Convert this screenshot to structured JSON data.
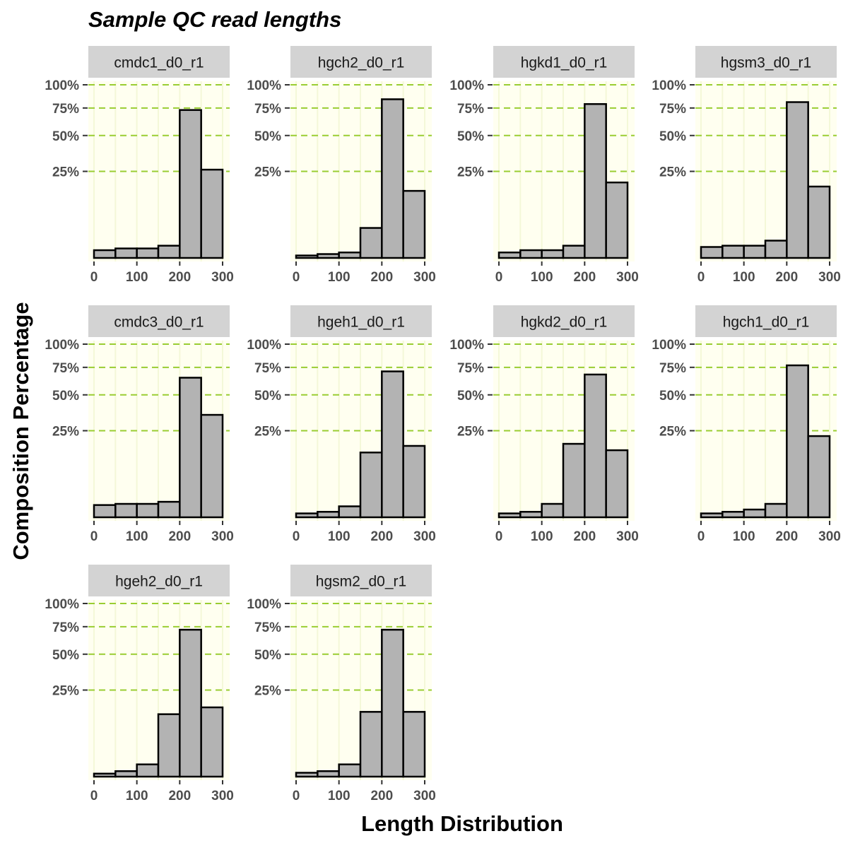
{
  "title": "Sample QC read lengths",
  "xlabel": "Length Distribution",
  "ylabel": "Composition Percentage",
  "colors": {
    "panel_background": "#fffff0",
    "panel_grid": "#f4f8d8",
    "reference_line": "#9acd32",
    "bar_fill": "#b3b3b3",
    "bar_outline": "#000000",
    "strip_background": "#d3d3d3",
    "axis_text": "#4d4d4d"
  },
  "chart_data": {
    "type": "bar",
    "title": "Sample QC read lengths",
    "xlabel": "Length Distribution",
    "ylabel": "Composition Percentage",
    "bin_width": 50,
    "x_ticks": [
      0,
      100,
      200,
      300
    ],
    "y_ticks": [
      {
        "label": "100%",
        "value": 1.0
      },
      {
        "label": "75%",
        "value": 0.75
      },
      {
        "label": "50%",
        "value": 0.5
      },
      {
        "label": "25%",
        "value": 0.25
      }
    ],
    "y_scale": "sqrt",
    "xlim": [
      0,
      300
    ],
    "ylim": [
      0,
      1
    ],
    "grid": true,
    "bin_starts": [
      0,
      50,
      100,
      150,
      200,
      250
    ],
    "panels": [
      {
        "name": "cmdc1_d0_r1",
        "values": [
          0.002,
          0.003,
          0.003,
          0.005,
          0.73,
          0.26
        ]
      },
      {
        "name": "hgch2_d0_r1",
        "values": [
          0.0002,
          0.0005,
          0.001,
          0.03,
          0.84,
          0.15
        ]
      },
      {
        "name": "hgkd1_d0_r1",
        "values": [
          0.001,
          0.002,
          0.002,
          0.005,
          0.79,
          0.19
        ]
      },
      {
        "name": "hgsm3_d0_r1",
        "values": [
          0.004,
          0.005,
          0.005,
          0.01,
          0.81,
          0.17
        ]
      },
      {
        "name": "cmdc3_d0_r1",
        "values": [
          0.005,
          0.006,
          0.006,
          0.008,
          0.65,
          0.35
        ]
      },
      {
        "name": "hgeh1_d0_r1",
        "values": [
          0.0005,
          0.001,
          0.004,
          0.14,
          0.71,
          0.17
        ]
      },
      {
        "name": "hgkd2_d0_r1",
        "values": [
          0.0005,
          0.001,
          0.006,
          0.18,
          0.68,
          0.15
        ]
      },
      {
        "name": "hgch1_d0_r1",
        "values": [
          0.0005,
          0.001,
          0.002,
          0.006,
          0.77,
          0.22
        ]
      },
      {
        "name": "hgeh2_d0_r1",
        "values": [
          0.0003,
          0.001,
          0.005,
          0.13,
          0.72,
          0.16
        ]
      },
      {
        "name": "hgsm2_d0_r1",
        "values": [
          0.0005,
          0.001,
          0.005,
          0.14,
          0.72,
          0.14
        ]
      }
    ]
  }
}
